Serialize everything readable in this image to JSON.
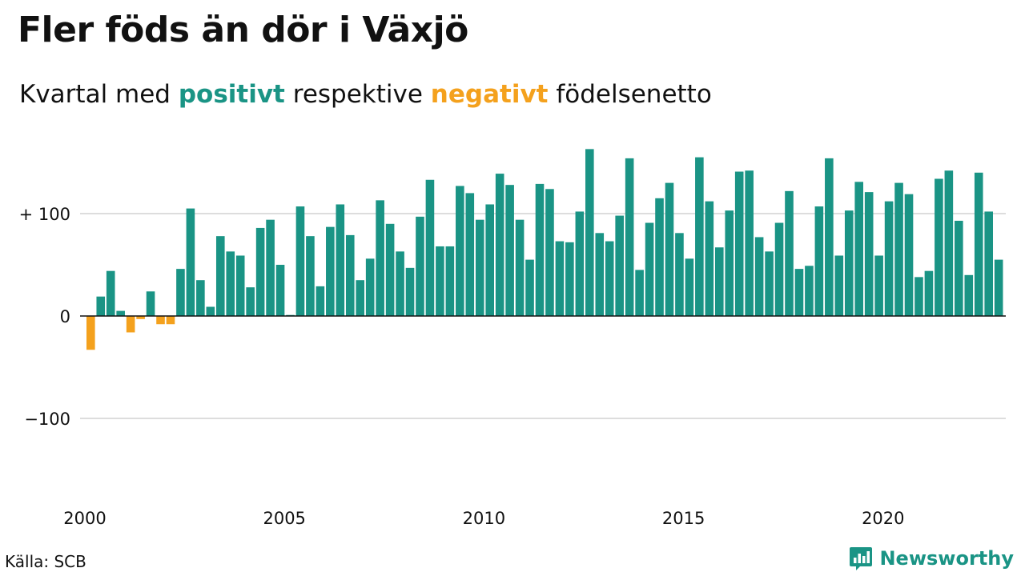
{
  "header": {
    "title": "Fler föds än dör i Växjö",
    "subtitle_prefix": "Kvartal med",
    "subtitle_positive": "positivt",
    "subtitle_middle": "respektive",
    "subtitle_negative": "negativt",
    "subtitle_suffix": "födelsenetto"
  },
  "footer": {
    "source": "Källa: SCB",
    "brand": "Newsworthy"
  },
  "colors": {
    "positive": "#1a9485",
    "negative": "#f4a11d",
    "grid": "#dddddd",
    "axis": "#111111"
  },
  "chart_data": {
    "type": "bar",
    "title": "Fler föds än dör i Växjö",
    "subtitle": "Kvartal med positivt respektive negativt födelsenetto",
    "x_start": "2000 Q1",
    "x_ticks": [
      "2000",
      "2005",
      "2010",
      "2015",
      "2020"
    ],
    "y_ticks": [
      {
        "value": 100,
        "label": "+ 100"
      },
      {
        "value": 0,
        "label": "0"
      },
      {
        "value": -100,
        "label": "−100"
      }
    ],
    "ylim": [
      -170,
      180
    ],
    "grid": true,
    "values": [
      -33,
      19,
      44,
      5,
      -16,
      -3,
      24,
      -8,
      -8,
      46,
      105,
      35,
      9,
      78,
      63,
      59,
      28,
      86,
      94,
      50,
      1,
      107,
      78,
      29,
      87,
      109,
      79,
      35,
      56,
      113,
      90,
      63,
      47,
      97,
      133,
      68,
      68,
      127,
      120,
      94,
      109,
      139,
      128,
      94,
      55,
      129,
      124,
      73,
      72,
      102,
      163,
      81,
      73,
      98,
      154,
      45,
      91,
      115,
      130,
      81,
      56,
      155,
      112,
      67,
      103,
      141,
      142,
      77,
      63,
      91,
      122,
      46,
      49,
      107,
      154,
      59,
      103,
      131,
      121,
      59,
      112,
      130,
      119,
      38,
      44,
      134,
      142,
      93,
      40,
      140,
      102,
      55
    ]
  }
}
